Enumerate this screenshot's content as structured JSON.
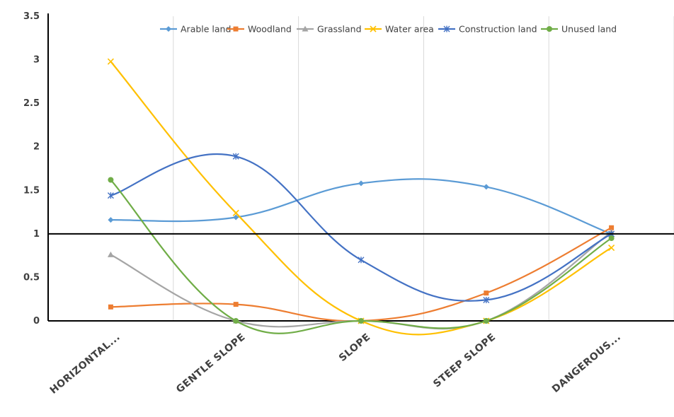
{
  "chart_data": {
    "type": "line",
    "title": "",
    "xlabel": "",
    "ylabel": "",
    "categories": [
      "HORIZONTAL...",
      "GENTLE SLOPE",
      "SLOPE",
      "STEEP SLOPE",
      "DANGEROUS..."
    ],
    "ylim": [
      0,
      3.5
    ],
    "yticks": [
      "0",
      "0.5",
      "1",
      "1.5",
      "2",
      "2.5",
      "3",
      "3.5"
    ],
    "yticks_values": [
      0,
      0.5,
      1,
      1.5,
      2,
      2.5,
      3,
      3.5
    ],
    "grid": "vertical",
    "reference_line": 1,
    "legend_position": "top-right",
    "series": [
      {
        "name": "Arable land",
        "values": [
          1.16,
          1.19,
          1.58,
          1.54,
          1.0
        ],
        "color": "#5B9BD5",
        "marker": "diamond"
      },
      {
        "name": "Woodland",
        "values": [
          0.16,
          0.19,
          0.0,
          0.32,
          1.07
        ],
        "color": "#ED7D31",
        "marker": "square"
      },
      {
        "name": "Grassland",
        "values": [
          0.76,
          0.0,
          0.0,
          0.0,
          1.02
        ],
        "color": "#A5A5A5",
        "marker": "triangle"
      },
      {
        "name": "Water area",
        "values": [
          2.98,
          1.24,
          0.0,
          0.0,
          0.84
        ],
        "color": "#FFC000",
        "marker": "x"
      },
      {
        "name": "Construction land",
        "values": [
          1.44,
          1.89,
          0.7,
          0.24,
          1.0
        ],
        "color": "#4472C4",
        "marker": "star"
      },
      {
        "name": "Unused land",
        "values": [
          1.62,
          0.0,
          0.0,
          0.0,
          0.95
        ],
        "color": "#70AD47",
        "marker": "circle"
      }
    ]
  }
}
